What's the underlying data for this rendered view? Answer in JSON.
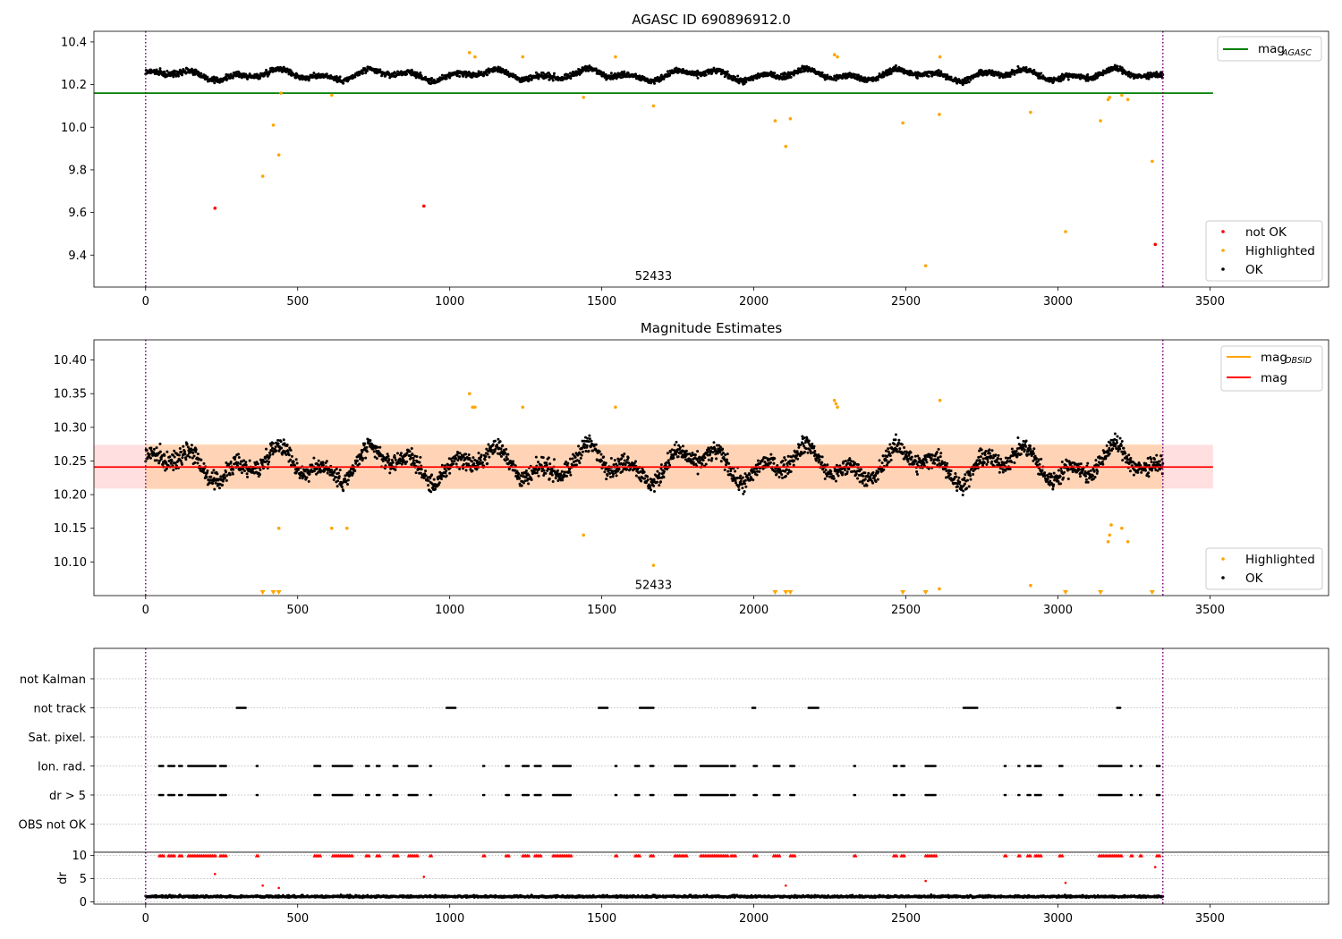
{
  "chart_data": [
    {
      "type": "scatter",
      "title": "AGASC ID 690896912.0",
      "xlim": [
        -170,
        3890
      ],
      "ylim": [
        9.25,
        10.45
      ],
      "x_ticks": [
        0,
        500,
        1000,
        1500,
        2000,
        2500,
        3000,
        3500
      ],
      "y_ticks": [
        9.4,
        9.6,
        9.8,
        10.0,
        10.2,
        10.4
      ],
      "y_tick_labels": [
        "9.4",
        "9.6",
        "9.8",
        "10.0",
        "10.2",
        "10.4"
      ],
      "annotation": {
        "text": "52433",
        "x": 1670,
        "y": 9.3
      },
      "vlines": [
        0,
        3345
      ],
      "reference_line": {
        "name": "mag_AGASC",
        "legend_main": "mag",
        "legend_sub": "AGASC",
        "y": 10.16,
        "x": [
          -170,
          3510
        ],
        "color": "#008000"
      },
      "ok_band": {
        "x": [
          0,
          3345
        ],
        "center": 10.245,
        "wave_amplitude": 0.03,
        "scatter": 0.022,
        "color": "#000000"
      },
      "legend_lower": [
        {
          "label": "not OK",
          "color": "#ff0000"
        },
        {
          "label": "Highlighted",
          "color": "#ffa500"
        },
        {
          "label": "OK",
          "color": "#000000"
        }
      ],
      "series": [
        {
          "name": "not OK",
          "color": "#ff0000",
          "points": [
            [
              228,
              9.62
            ],
            [
              915,
              9.63
            ],
            [
              3320,
              9.45
            ]
          ]
        },
        {
          "name": "Highlighted",
          "color": "#ffa500",
          "points": [
            [
              385,
              9.77
            ],
            [
              420,
              10.01
            ],
            [
              438,
              9.87
            ],
            [
              445,
              10.16
            ],
            [
              612,
              10.15
            ],
            [
              1065,
              10.35
            ],
            [
              1083,
              10.33
            ],
            [
              1240,
              10.33
            ],
            [
              1440,
              10.14
            ],
            [
              1545,
              10.33
            ],
            [
              1670,
              10.1
            ],
            [
              2070,
              10.03
            ],
            [
              2105,
              9.91
            ],
            [
              2120,
              10.04
            ],
            [
              2265,
              10.34
            ],
            [
              2275,
              10.33
            ],
            [
              2490,
              10.02
            ],
            [
              2565,
              9.35
            ],
            [
              2610,
              10.06
            ],
            [
              2612,
              10.33
            ],
            [
              2910,
              10.07
            ],
            [
              3025,
              9.51
            ],
            [
              3140,
              10.03
            ],
            [
              3165,
              10.13
            ],
            [
              3170,
              10.14
            ],
            [
              3210,
              10.15
            ],
            [
              3230,
              10.13
            ],
            [
              3310,
              9.84
            ]
          ]
        }
      ]
    },
    {
      "type": "scatter",
      "title": "Magnitude Estimates",
      "xlim": [
        -170,
        3890
      ],
      "ylim": [
        10.05,
        10.43
      ],
      "x_ticks": [
        0,
        500,
        1000,
        1500,
        2000,
        2500,
        3000,
        3500
      ],
      "y_ticks": [
        10.1,
        10.15,
        10.2,
        10.25,
        10.3,
        10.35,
        10.4
      ],
      "y_tick_labels": [
        "10.10",
        "10.15",
        "10.20",
        "10.25",
        "10.30",
        "10.35",
        "10.40"
      ],
      "annotation": {
        "text": "52433",
        "x": 1670,
        "y": 10.065
      },
      "vlines": [
        0,
        3345
      ],
      "mag_line": {
        "legend": "mag",
        "y": 10.241,
        "color": "#ff0000"
      },
      "mag_band": {
        "y": [
          10.209,
          10.274
        ],
        "color": "#ff7f7f"
      },
      "mag_obsid_band": {
        "legend_main": "mag",
        "legend_sub": "OBSID",
        "y": [
          10.208,
          10.275
        ],
        "color": "#ffa500"
      },
      "ok_band": {
        "x": [
          0,
          3345
        ],
        "center": 10.245,
        "wave_amplitude": 0.03,
        "scatter": 0.022,
        "color": "#000000"
      },
      "legend_lower": [
        {
          "label": "Highlighted",
          "color": "#ffa500"
        },
        {
          "label": "OK",
          "color": "#000000"
        }
      ],
      "series": [
        {
          "name": "Highlighted",
          "color": "#ffa500",
          "points": [
            [
              438,
              10.15
            ],
            [
              612,
              10.15
            ],
            [
              662,
              10.15
            ],
            [
              1065,
              10.35
            ],
            [
              1075,
              10.33
            ],
            [
              1083,
              10.33
            ],
            [
              1240,
              10.33
            ],
            [
              1440,
              10.14
            ],
            [
              1545,
              10.33
            ],
            [
              1670,
              10.095
            ],
            [
              2265,
              10.34
            ],
            [
              2270,
              10.335
            ],
            [
              2275,
              10.33
            ],
            [
              2612,
              10.34
            ],
            [
              2610,
              10.06
            ],
            [
              2910,
              10.065
            ],
            [
              3165,
              10.13
            ],
            [
              3170,
              10.14
            ],
            [
              3210,
              10.15
            ],
            [
              3230,
              10.13
            ],
            [
              3175,
              10.155
            ]
          ]
        },
        {
          "name": "Highlighted (below range)",
          "color": "#ffa500",
          "x": [
            385,
            420,
            438,
            2070,
            2105,
            2120,
            2490,
            2565,
            3025,
            3140,
            3310
          ]
        }
      ]
    },
    {
      "type": "scatter",
      "title": "",
      "xlim": [
        -170,
        3890
      ],
      "x_ticks": [
        0,
        500,
        1000,
        1500,
        2000,
        2500,
        3000,
        3500
      ],
      "vlines": [
        0,
        3345
      ],
      "flag_rows": [
        "not Kalman",
        "not track",
        "Sat. pixel.",
        "Ion. rad.",
        "dr > 5",
        "OBS not OK"
      ],
      "flags": {
        "not Kalman": [],
        "not track": [
          [
            300,
            330
          ],
          [
            990,
            1020
          ],
          [
            1490,
            1520
          ],
          [
            1625,
            1670
          ],
          [
            1995,
            2005
          ],
          [
            2180,
            2215
          ],
          [
            2690,
            2735
          ],
          [
            3195,
            3205
          ]
        ],
        "Sat. pixel.": [],
        "Ion. rad.": [
          [
            45,
            60
          ],
          [
            75,
            95
          ],
          [
            110,
            120
          ],
          [
            140,
            230
          ],
          [
            245,
            265
          ],
          [
            365,
            370
          ],
          [
            555,
            575
          ],
          [
            615,
            680
          ],
          [
            725,
            735
          ],
          [
            760,
            770
          ],
          [
            815,
            830
          ],
          [
            865,
            895
          ],
          [
            935,
            940
          ],
          [
            1110,
            1115
          ],
          [
            1185,
            1195
          ],
          [
            1240,
            1260
          ],
          [
            1280,
            1300
          ],
          [
            1340,
            1400
          ],
          [
            1545,
            1550
          ],
          [
            1610,
            1625
          ],
          [
            1660,
            1670
          ],
          [
            1740,
            1780
          ],
          [
            1825,
            1915
          ],
          [
            1925,
            1940
          ],
          [
            2000,
            2010
          ],
          [
            2065,
            2085
          ],
          [
            2120,
            2135
          ],
          [
            2330,
            2335
          ],
          [
            2460,
            2470
          ],
          [
            2485,
            2495
          ],
          [
            2565,
            2600
          ],
          [
            2825,
            2830
          ],
          [
            2870,
            2875
          ],
          [
            2900,
            2910
          ],
          [
            2925,
            2945
          ],
          [
            3005,
            3015
          ],
          [
            3135,
            3210
          ],
          [
            3240,
            3245
          ],
          [
            3270,
            3275
          ],
          [
            3325,
            3335
          ]
        ],
        "dr > 5": [
          [
            45,
            60
          ],
          [
            75,
            95
          ],
          [
            110,
            120
          ],
          [
            140,
            230
          ],
          [
            245,
            265
          ],
          [
            365,
            370
          ],
          [
            555,
            575
          ],
          [
            615,
            680
          ],
          [
            725,
            735
          ],
          [
            760,
            770
          ],
          [
            815,
            830
          ],
          [
            865,
            895
          ],
          [
            935,
            940
          ],
          [
            1110,
            1115
          ],
          [
            1185,
            1195
          ],
          [
            1240,
            1260
          ],
          [
            1280,
            1300
          ],
          [
            1340,
            1400
          ],
          [
            1545,
            1550
          ],
          [
            1610,
            1625
          ],
          [
            1660,
            1670
          ],
          [
            1740,
            1780
          ],
          [
            1825,
            1915
          ],
          [
            1925,
            1940
          ],
          [
            2000,
            2010
          ],
          [
            2065,
            2085
          ],
          [
            2120,
            2135
          ],
          [
            2330,
            2335
          ],
          [
            2460,
            2470
          ],
          [
            2485,
            2495
          ],
          [
            2565,
            2600
          ],
          [
            2825,
            2830
          ],
          [
            2870,
            2875
          ],
          [
            2900,
            2910
          ],
          [
            2925,
            2945
          ],
          [
            3005,
            3015
          ],
          [
            3135,
            3210
          ],
          [
            3240,
            3245
          ],
          [
            3270,
            3275
          ],
          [
            3325,
            3335
          ]
        ],
        "OBS not OK": []
      }
    },
    {
      "type": "scatter",
      "title": "",
      "ylabel": "dr",
      "xlim": [
        -170,
        3890
      ],
      "ylim": [
        -0.5,
        10.7
      ],
      "x_ticks": [
        0,
        500,
        1000,
        1500,
        2000,
        2500,
        3000,
        3500
      ],
      "y_ticks": [
        0,
        5,
        10
      ],
      "y_tick_labels": [
        "0",
        "5",
        "10"
      ],
      "vlines": [
        0,
        3345
      ],
      "ok_band": {
        "x": [
          0,
          3345
        ],
        "center": 1.0,
        "scatter": 0.45,
        "color": "#000000"
      },
      "capped_marker_value": 10,
      "series": [
        {
          "name": "not OK",
          "color": "#ff0000",
          "points": [
            [
              228,
              6.0
            ],
            [
              385,
              3.5
            ],
            [
              438,
              3.0
            ],
            [
              915,
              5.4
            ],
            [
              2105,
              3.5
            ],
            [
              2565,
              4.5
            ],
            [
              3025,
              4.1
            ],
            [
              3320,
              7.5
            ]
          ]
        }
      ]
    }
  ]
}
